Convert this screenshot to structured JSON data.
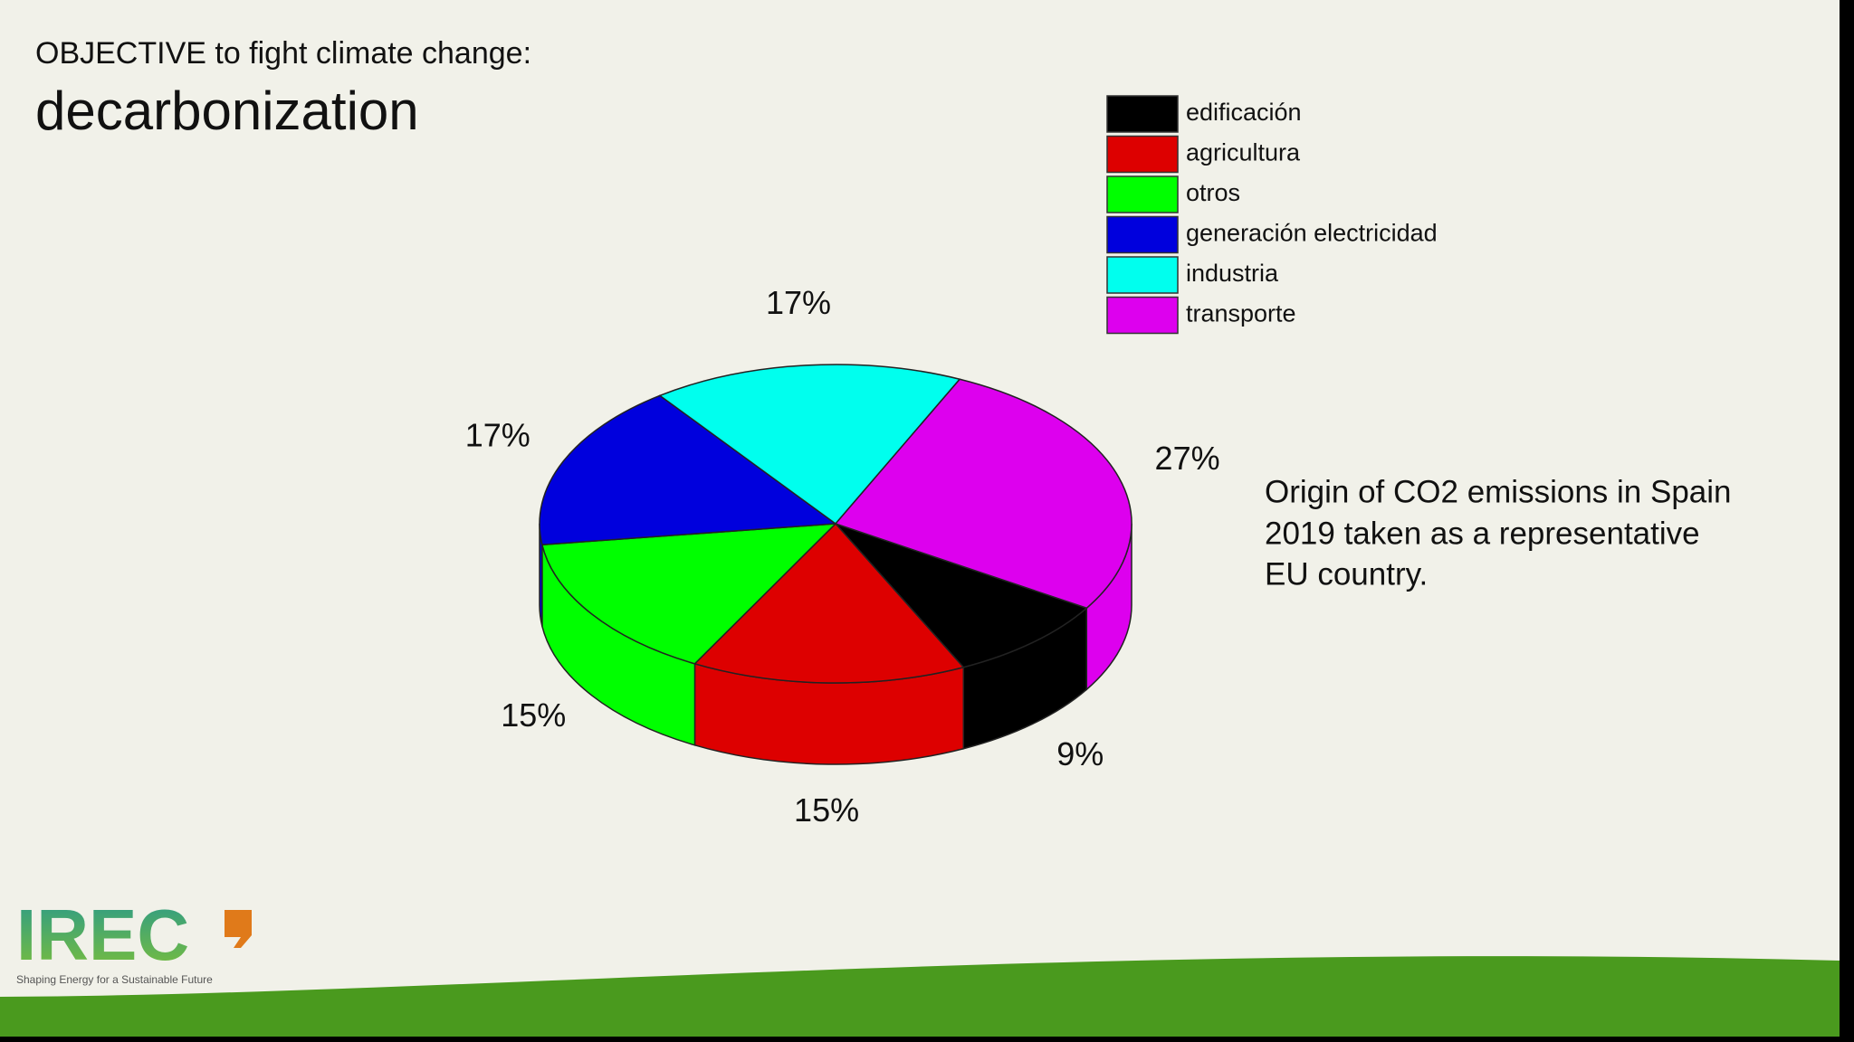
{
  "header": {
    "kicker": "OBJECTIVE to fight climate change:",
    "title": "decarbonization"
  },
  "chart_data": {
    "type": "pie",
    "categories": [
      "edificación",
      "agricultura",
      "otros",
      "generación electricidad",
      "industria",
      "transporte"
    ],
    "values": [
      9,
      15,
      15,
      17,
      17,
      27
    ],
    "value_labels": [
      "9%",
      "15%",
      "15%",
      "17%",
      "17%",
      "27%"
    ],
    "colors": [
      "#000000",
      "#dd0000",
      "#00ff00",
      "#0000dd",
      "#00ffee",
      "#dd00ee"
    ]
  },
  "note": [
    "Origin of CO2 emissions in Spain",
    "2019 taken as a representative",
    "EU country."
  ],
  "logo": {
    "name": "IREC",
    "tagline": "Shaping Energy for a Sustainable Future"
  }
}
